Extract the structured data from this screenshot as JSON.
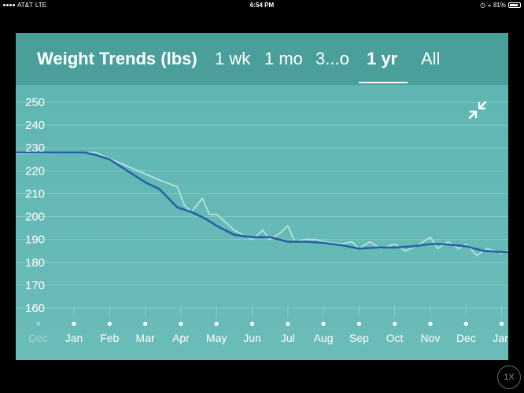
{
  "status_bar": {
    "carrier": "AT&T",
    "network": "LTE",
    "time": "6:54 PM",
    "battery": "81%",
    "icons": [
      "alarm-icon",
      "bluetooth-icon",
      "battery-icon"
    ]
  },
  "header": {
    "title": "Weight Trends (lbs)",
    "tabs": [
      {
        "label": "1 wk",
        "active": false
      },
      {
        "label": "1 mo",
        "active": false
      },
      {
        "label": "3...o",
        "active": false
      },
      {
        "label": "1 yr",
        "active": true
      },
      {
        "label": "All",
        "active": false
      }
    ]
  },
  "colors": {
    "panel": "#5db5b1",
    "header": "#4a9f9a",
    "trend_line": "#2563a6",
    "raw_line": "#b6e2df",
    "grid": "#8fd0cc"
  },
  "icons": {
    "collapse": "collapse-arrows-icon"
  },
  "zoom_badge": "1X",
  "chart_data": {
    "type": "line",
    "title": "Weight Trends (lbs)",
    "ylabel": "lbs",
    "ylim": [
      155,
      255
    ],
    "yticks": [
      160,
      170,
      180,
      190,
      200,
      210,
      220,
      230,
      240,
      250
    ],
    "x_tick_labels": [
      "Dec",
      "Jan",
      "Feb",
      "Mar",
      "Apr",
      "May",
      "Jun",
      "Jul",
      "Aug",
      "Sep",
      "Oct",
      "Nov",
      "Dec",
      "Jan"
    ],
    "x_tick_dimmed": [
      true,
      false,
      false,
      false,
      false,
      false,
      false,
      false,
      false,
      false,
      false,
      false,
      false,
      false
    ],
    "xlim": [
      -0.6,
      13.0
    ],
    "series": [
      {
        "name": "trend",
        "x": [
          -0.6,
          0.0,
          0.3,
          0.6,
          1.0,
          1.5,
          2.0,
          2.4,
          2.9,
          3.3,
          3.7,
          4.0,
          4.5,
          5.0,
          5.5,
          6.0,
          6.5,
          7.0,
          7.5,
          8.0,
          8.5,
          9.0,
          9.5,
          10.0,
          10.3,
          10.7,
          11.0,
          11.5,
          12.0,
          12.5,
          13.0
        ],
        "y": [
          228,
          228,
          228,
          227,
          225,
          220,
          215,
          212,
          204,
          202,
          199,
          196,
          192,
          191,
          191,
          189,
          189,
          188.5,
          187.5,
          186,
          186.5,
          186.5,
          187,
          188,
          188,
          187.5,
          187,
          185,
          184.5,
          184.5,
          184
        ]
      },
      {
        "name": "raw",
        "x": [
          -0.6,
          0.0,
          0.6,
          1.2,
          1.8,
          2.4,
          2.9,
          3.1,
          3.3,
          3.4,
          3.6,
          3.8,
          4.0,
          4.5,
          5.0,
          5.3,
          5.5,
          5.8,
          6.0,
          6.2,
          6.5,
          6.8,
          7.0,
          7.5,
          7.8,
          8.0,
          8.3,
          8.6,
          9.0,
          9.3,
          9.6,
          10.0,
          10.2,
          10.5,
          10.8,
          11.0,
          11.3,
          11.6,
          12.0,
          12.3,
          12.6,
          13.0
        ],
        "y": [
          227.5,
          228,
          228,
          224,
          220,
          216,
          213,
          205,
          202,
          204,
          208,
          201,
          201,
          194,
          190,
          194,
          190,
          193,
          196,
          189,
          190,
          190,
          189,
          188,
          189,
          186,
          189,
          186,
          188,
          185,
          187,
          191,
          186,
          189,
          186,
          188,
          183,
          186,
          184,
          186,
          182,
          185
        ]
      }
    ]
  }
}
